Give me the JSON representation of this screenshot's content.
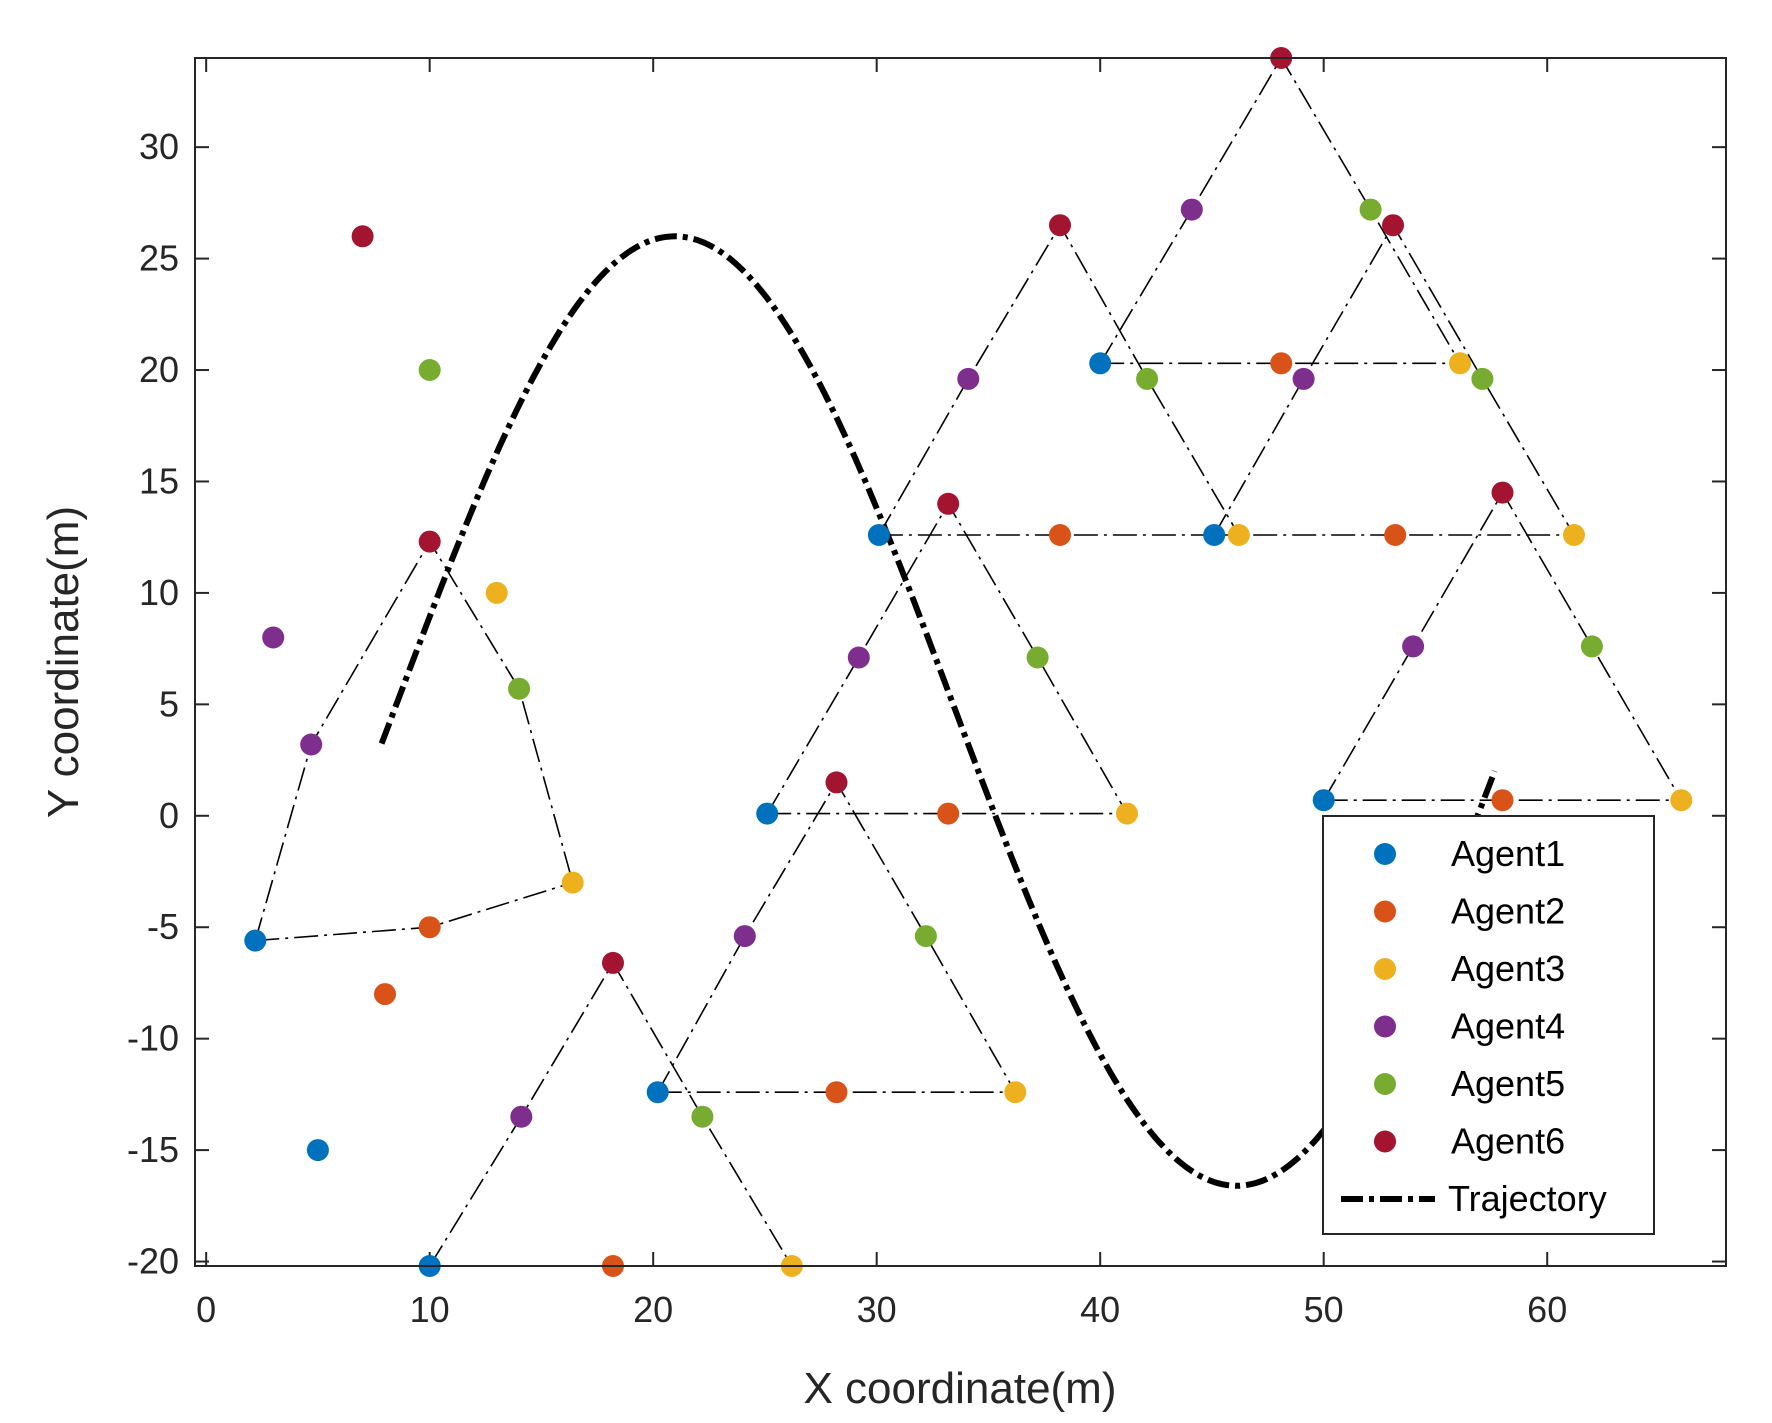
{
  "chart_data": {
    "type": "scatter",
    "xlabel": "X coordinate(m)",
    "ylabel": "Y coordinate(m)",
    "xlim": [
      -0.5,
      68
    ],
    "ylim": [
      -20.2,
      34
    ],
    "xticks": [
      0,
      10,
      20,
      30,
      40,
      50,
      60
    ],
    "yticks": [
      -20,
      -15,
      -10,
      -5,
      0,
      5,
      10,
      15,
      20,
      25,
      30
    ],
    "xtick_labels": [
      "0",
      "10",
      "20",
      "30",
      "40",
      "50",
      "60"
    ],
    "ytick_labels": [
      "-20",
      "-15",
      "-10",
      "-5",
      "0",
      "5",
      "10",
      "15",
      "20",
      "25",
      "30"
    ],
    "legend_position": "bottom-right",
    "series": [
      {
        "name": "Agent1",
        "color": "#0072BD",
        "points": [
          [
            2.2,
            -5.6
          ],
          [
            5,
            -15
          ],
          [
            10,
            -20.2
          ],
          [
            20.2,
            -12.4
          ],
          [
            25.1,
            0.1
          ],
          [
            30.1,
            12.6
          ],
          [
            40,
            20.3
          ],
          [
            45.1,
            12.6
          ],
          [
            50,
            0.7
          ]
        ]
      },
      {
        "name": "Agent2",
        "color": "#D95319",
        "points": [
          [
            8,
            -8
          ],
          [
            10,
            -5
          ],
          [
            18.2,
            -20.2
          ],
          [
            28.2,
            -12.4
          ],
          [
            33.2,
            0.1
          ],
          [
            38.2,
            12.6
          ],
          [
            48.1,
            20.3
          ],
          [
            53.2,
            12.6
          ],
          [
            58,
            0.7
          ]
        ]
      },
      {
        "name": "Agent3",
        "color": "#EDB120",
        "points": [
          [
            13,
            10
          ],
          [
            16.4,
            -3
          ],
          [
            26.2,
            -20.2
          ],
          [
            36.2,
            -12.4
          ],
          [
            41.2,
            0.1
          ],
          [
            46.2,
            12.6
          ],
          [
            56.1,
            20.3
          ],
          [
            61.2,
            12.6
          ],
          [
            66,
            0.7
          ]
        ]
      },
      {
        "name": "Agent4",
        "color": "#7E2F8E",
        "points": [
          [
            3,
            8
          ],
          [
            4.7,
            3.2
          ],
          [
            14.1,
            -13.5
          ],
          [
            24.1,
            -5.4
          ],
          [
            29.2,
            7.1
          ],
          [
            34.1,
            19.6
          ],
          [
            44.1,
            27.2
          ],
          [
            49.1,
            19.6
          ],
          [
            54,
            7.6
          ]
        ]
      },
      {
        "name": "Agent5",
        "color": "#77AC30",
        "points": [
          [
            10,
            20
          ],
          [
            14,
            5.7
          ],
          [
            22.2,
            -13.5
          ],
          [
            32.2,
            -5.4
          ],
          [
            37.2,
            7.1
          ],
          [
            42.1,
            19.6
          ],
          [
            52.1,
            27.2
          ],
          [
            57.1,
            19.6
          ],
          [
            62,
            7.6
          ]
        ]
      },
      {
        "name": "Agent6",
        "color": "#A2142F",
        "points": [
          [
            7,
            26
          ],
          [
            10,
            12.3
          ],
          [
            18.2,
            -6.6
          ],
          [
            28.2,
            1.5
          ],
          [
            33.2,
            14
          ],
          [
            38.2,
            26.5
          ],
          [
            48.1,
            34
          ],
          [
            53.1,
            26.5
          ],
          [
            58,
            14.5
          ]
        ]
      }
    ],
    "formation_lines": [
      [
        [
          2.2,
          -5.6
        ],
        [
          10,
          -5
        ],
        [
          16.4,
          -3
        ]
      ],
      [
        [
          2.2,
          -5.6
        ],
        [
          4.7,
          3.2
        ],
        [
          10,
          12.3
        ],
        [
          14,
          5.7
        ],
        [
          16.4,
          -3
        ]
      ],
      [
        [
          10,
          -20.2
        ],
        [
          18.2,
          -20.2
        ],
        [
          26.2,
          -20.2
        ]
      ],
      [
        [
          10,
          -20.2
        ],
        [
          14.1,
          -13.5
        ],
        [
          18.2,
          -6.6
        ],
        [
          22.2,
          -13.5
        ],
        [
          26.2,
          -20.2
        ]
      ],
      [
        [
          20.2,
          -12.4
        ],
        [
          28.2,
          -12.4
        ],
        [
          36.2,
          -12.4
        ]
      ],
      [
        [
          20.2,
          -12.4
        ],
        [
          24.1,
          -5.4
        ],
        [
          28.2,
          1.5
        ],
        [
          32.2,
          -5.4
        ],
        [
          36.2,
          -12.4
        ]
      ],
      [
        [
          25.1,
          0.1
        ],
        [
          33.2,
          0.1
        ],
        [
          41.2,
          0.1
        ]
      ],
      [
        [
          25.1,
          0.1
        ],
        [
          29.2,
          7.1
        ],
        [
          33.2,
          14
        ],
        [
          37.2,
          7.1
        ],
        [
          41.2,
          0.1
        ]
      ],
      [
        [
          30.1,
          12.6
        ],
        [
          38.2,
          12.6
        ],
        [
          46.2,
          12.6
        ]
      ],
      [
        [
          30.1,
          12.6
        ],
        [
          34.1,
          19.6
        ],
        [
          38.2,
          26.5
        ],
        [
          42.1,
          19.6
        ],
        [
          46.2,
          12.6
        ]
      ],
      [
        [
          40,
          20.3
        ],
        [
          48.1,
          20.3
        ],
        [
          56.1,
          20.3
        ]
      ],
      [
        [
          40,
          20.3
        ],
        [
          44.1,
          27.2
        ],
        [
          48.1,
          34
        ],
        [
          52.1,
          27.2
        ],
        [
          56.1,
          20.3
        ]
      ],
      [
        [
          45.1,
          12.6
        ],
        [
          53.2,
          12.6
        ],
        [
          61.2,
          12.6
        ]
      ],
      [
        [
          45.1,
          12.6
        ],
        [
          49.1,
          19.6
        ],
        [
          53.1,
          26.5
        ],
        [
          57.1,
          19.6
        ],
        [
          61.2,
          12.6
        ]
      ],
      [
        [
          50,
          0.7
        ],
        [
          58,
          0.7
        ],
        [
          66,
          0.7
        ]
      ],
      [
        [
          50,
          0.7
        ],
        [
          54,
          7.6
        ],
        [
          58,
          14.5
        ],
        [
          62,
          7.6
        ],
        [
          66,
          0.7
        ]
      ]
    ],
    "trajectory": {
      "name": "Trajectory",
      "color": "#000000",
      "x_start": 7.85,
      "x_end": 57.8,
      "formula": "y = 21.3*sin(0.125*(x - 8.4)) + 4.7"
    }
  }
}
